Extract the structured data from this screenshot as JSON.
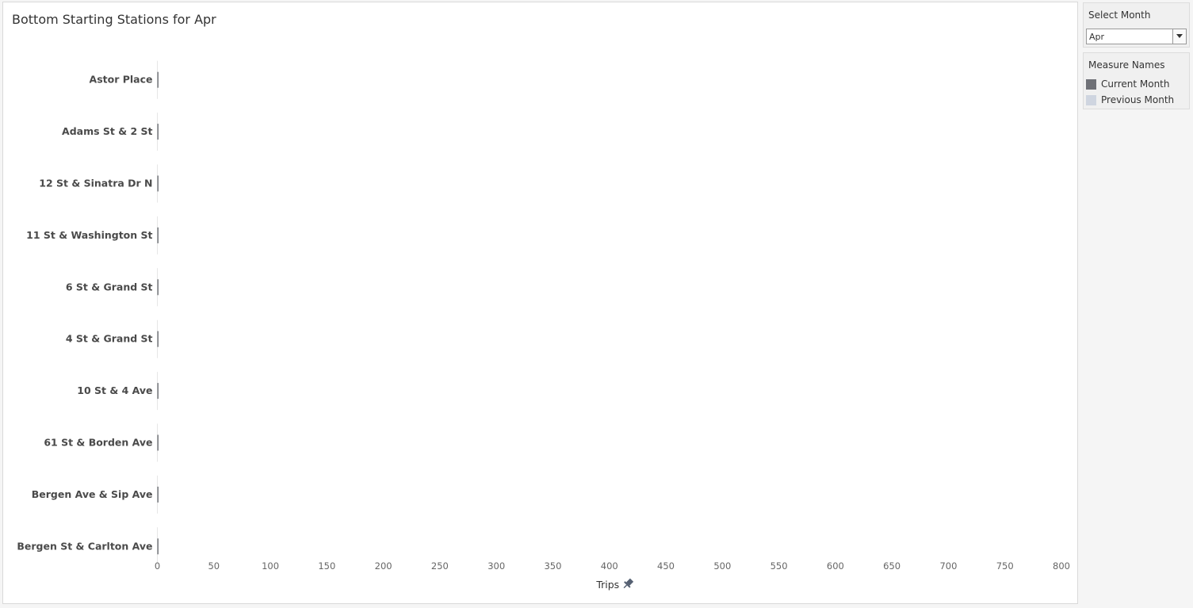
{
  "filter": {
    "title": "Select Month",
    "selected": "Apr"
  },
  "legend": {
    "title": "Measure Names",
    "items": [
      {
        "label": "Current Month",
        "color": "#6f7177"
      },
      {
        "label": "Previous Month",
        "color": "#cfd5e0"
      }
    ]
  },
  "chart_data": {
    "type": "bar",
    "orientation": "horizontal",
    "title": "Bottom Starting Stations for Apr",
    "xlabel": "Trips",
    "ylabel": "",
    "xlim": [
      0,
      800
    ],
    "xticks": [
      "0",
      "50",
      "100",
      "150",
      "200",
      "250",
      "300",
      "350",
      "400",
      "450",
      "500",
      "550",
      "600",
      "650",
      "700",
      "750",
      "800"
    ],
    "categories": [
      "Astor Place",
      "Adams St & 2 St",
      "12 St & Sinatra Dr N",
      "11 St & Washington St",
      "6 St & Grand St",
      "4 St & Grand St",
      "10 St & 4 Ave",
      "61 St & Borden Ave",
      "Bergen Ave & Sip Ave",
      "Bergen St & Carlton Ave"
    ],
    "series": [
      {
        "name": "Current Month",
        "values": [
          1,
          1,
          1,
          1,
          1,
          1,
          1,
          1,
          1,
          1
        ]
      },
      {
        "name": "Previous Month",
        "values": [
          0,
          0,
          0,
          0,
          0,
          0,
          0,
          0,
          0,
          0
        ]
      }
    ],
    "grid": false,
    "legend_position": "right"
  }
}
